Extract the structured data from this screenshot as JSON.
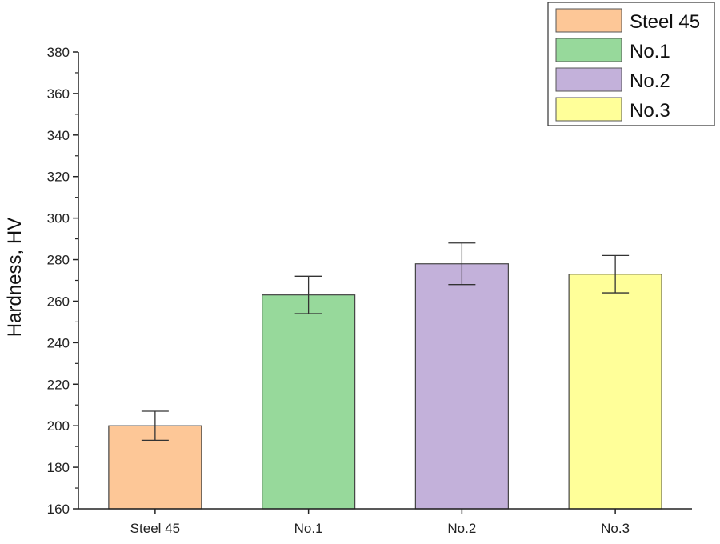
{
  "chart_data": {
    "type": "bar",
    "categories": [
      "Steel 45",
      "No.1",
      "No.2",
      "No.3"
    ],
    "values": [
      200,
      263,
      278,
      273
    ],
    "error": [
      7,
      9,
      10,
      9
    ],
    "colors": [
      "#fdc797",
      "#97d99b",
      "#c3b1da",
      "#ffff99"
    ],
    "ylabel": "Hardness, HV",
    "ylim": [
      160,
      380
    ],
    "y_ticks": [
      "160",
      "180",
      "200",
      "220",
      "240",
      "260",
      "280",
      "300",
      "320",
      "340",
      "360",
      "380"
    ],
    "grid": false,
    "legend": {
      "placement": "top-right",
      "entries": [
        "Steel 45",
        "No.1",
        "No.2",
        "No.3"
      ]
    }
  }
}
